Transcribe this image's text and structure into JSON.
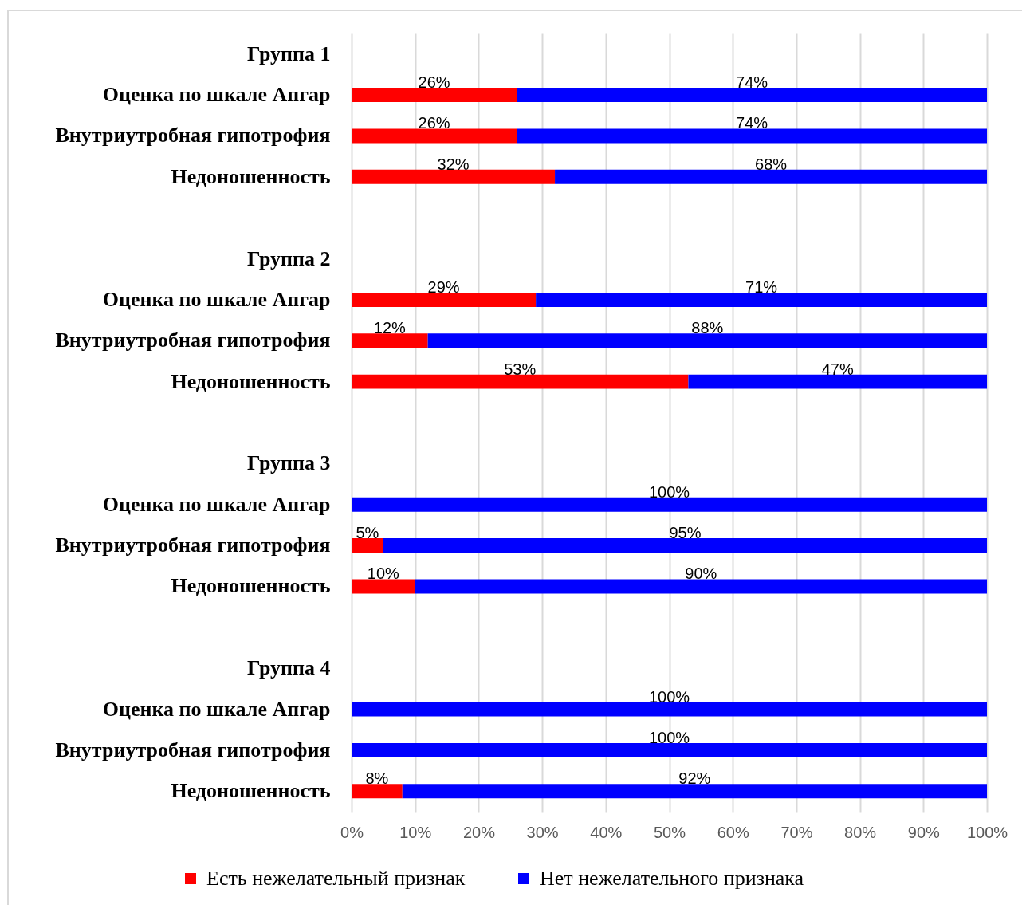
{
  "chart_data": {
    "type": "bar",
    "orientation": "horizontal",
    "stacked": true,
    "categories": [
      "Группа 1",
      "Оценка по шкале Апгар",
      "Внутриутробная гипотрофия",
      "Недоношенность",
      null,
      "Группа 2",
      "Оценка по шкале Апгар",
      "Внутриутробная гипотрофия",
      "Недоношенность",
      null,
      "Группа 3",
      "Оценка по шкале Апгар",
      "Внутриутробная гипотрофия",
      "Недоношенность",
      null,
      "Группа 4",
      "Оценка по шкале Апгар",
      "Внутриутробная гипотрофия",
      "Недоношенность"
    ],
    "series": [
      {
        "name": "Есть нежелательный признак",
        "color": "#ff0000",
        "values": [
          null,
          26,
          26,
          32,
          null,
          null,
          29,
          12,
          53,
          null,
          null,
          null,
          5,
          10,
          null,
          null,
          null,
          null,
          8
        ],
        "value_labels": [
          null,
          "26%",
          "26%",
          "32%",
          null,
          null,
          "29%",
          "12%",
          "53%",
          null,
          null,
          null,
          "5%",
          "10%",
          null,
          null,
          null,
          null,
          "8%"
        ]
      },
      {
        "name": "Нет нежелательного признака",
        "color": "#0000ff",
        "values": [
          null,
          74,
          74,
          68,
          null,
          null,
          71,
          88,
          47,
          null,
          null,
          100,
          95,
          90,
          null,
          null,
          100,
          100,
          92
        ],
        "value_labels": [
          null,
          "74%",
          "74%",
          "68%",
          null,
          null,
          "71%",
          "88%",
          "47%",
          null,
          null,
          "100%",
          "95%",
          "90%",
          null,
          null,
          "100%",
          "100%",
          "92%"
        ]
      }
    ],
    "xlim": [
      0,
      100
    ],
    "xticks": [
      {
        "value": 0,
        "label": "0%"
      },
      {
        "value": 10,
        "label": "10%"
      },
      {
        "value": 20,
        "label": "20%"
      },
      {
        "value": 30,
        "label": "30%"
      },
      {
        "value": 40,
        "label": "40%"
      },
      {
        "value": 50,
        "label": "50%"
      },
      {
        "value": 60,
        "label": "60%"
      },
      {
        "value": 70,
        "label": "70%"
      },
      {
        "value": 80,
        "label": "80%"
      },
      {
        "value": 90,
        "label": "90%"
      },
      {
        "value": 100,
        "label": "100%"
      }
    ],
    "grid": "x",
    "legend": "bottom"
  }
}
